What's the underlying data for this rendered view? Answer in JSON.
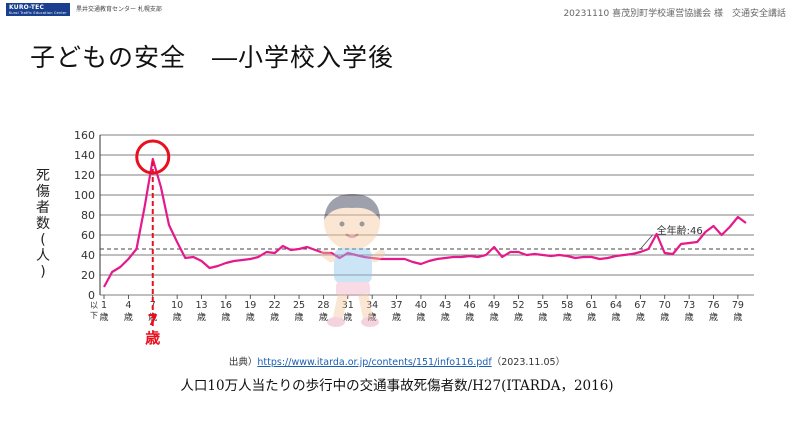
{
  "header": {
    "logo_text": "KURO-TEC",
    "logo_sub": "Kuroi Traffic Education Center",
    "org": "黒井交通教育センター 札幌支部",
    "slide_info": "20231110 喜茂別町学校運営協議会 様　交通安全講話"
  },
  "title": "子どもの安全　―小学校入学後",
  "y_axis_label_chars": [
    "死",
    "傷",
    "者",
    "数",
    "(",
    "人",
    ")"
  ],
  "annotation": {
    "peak_age": "7",
    "peak_unit": "歳",
    "avg_label": "全年齢:46"
  },
  "source": {
    "prefix": "出典）",
    "url": "https://www.itarda.or.jp/contents/151/info116.pdf",
    "date": "（2023.11.05）"
  },
  "caption": "人口10万人当たりの歩行中の交通事故死傷者数/H27(ITARDA，2016)",
  "colors": {
    "line": "#e6198a",
    "highlight": "#e8101e",
    "grid": "#555555",
    "avg_line": "#444444",
    "logo": "#1b3f8f"
  },
  "chart_data": {
    "type": "line",
    "title": "",
    "ylabel": "死傷者数(人)",
    "xlabel": "",
    "ylim": [
      0,
      160
    ],
    "yticks": [
      0,
      20,
      40,
      60,
      80,
      100,
      120,
      140,
      160
    ],
    "grid": true,
    "x_tick_labels": [
      {
        "age": 1,
        "text": "1",
        "suffix": "歳",
        "prefix": "以下"
      },
      {
        "age": 4,
        "text": "4",
        "suffix": "歳"
      },
      {
        "age": 7,
        "text": "7",
        "suffix": "歳"
      },
      {
        "age": 10,
        "text": "10",
        "suffix": "歳"
      },
      {
        "age": 13,
        "text": "13",
        "suffix": "歳"
      },
      {
        "age": 16,
        "text": "16",
        "suffix": "歳"
      },
      {
        "age": 19,
        "text": "19",
        "suffix": "歳"
      },
      {
        "age": 22,
        "text": "22",
        "suffix": "歳"
      },
      {
        "age": 25,
        "text": "25",
        "suffix": "歳"
      },
      {
        "age": 28,
        "text": "28",
        "suffix": "歳"
      },
      {
        "age": 31,
        "text": "31",
        "suffix": "歳"
      },
      {
        "age": 34,
        "text": "34",
        "suffix": "歳"
      },
      {
        "age": 37,
        "text": "37",
        "suffix": "歳"
      },
      {
        "age": 40,
        "text": "40",
        "suffix": "歳"
      },
      {
        "age": 43,
        "text": "43",
        "suffix": "歳"
      },
      {
        "age": 46,
        "text": "46",
        "suffix": "歳"
      },
      {
        "age": 49,
        "text": "49",
        "suffix": "歳"
      },
      {
        "age": 52,
        "text": "52",
        "suffix": "歳"
      },
      {
        "age": 55,
        "text": "55",
        "suffix": "歳"
      },
      {
        "age": 58,
        "text": "58",
        "suffix": "歳"
      },
      {
        "age": 61,
        "text": "61",
        "suffix": "歳"
      },
      {
        "age": 64,
        "text": "64",
        "suffix": "歳"
      },
      {
        "age": 67,
        "text": "67",
        "suffix": "歳"
      },
      {
        "age": 70,
        "text": "70",
        "suffix": "歳"
      },
      {
        "age": 73,
        "text": "73",
        "suffix": "歳"
      },
      {
        "age": 76,
        "text": "76",
        "suffix": "歳"
      },
      {
        "age": 79,
        "text": "79",
        "suffix": "歳"
      }
    ],
    "reference_line": {
      "value": 46,
      "label": "全年齢:46",
      "style": "dashed"
    },
    "highlight": {
      "age": 7,
      "value": 136
    },
    "series": [
      {
        "x": [
          1,
          2,
          3,
          4,
          5,
          6,
          7,
          8,
          9,
          10,
          11,
          12,
          13,
          14,
          15,
          16,
          17,
          18,
          19,
          20,
          21,
          22,
          23,
          24,
          25,
          26,
          27,
          28,
          29,
          30,
          31,
          32,
          33,
          34,
          35,
          36,
          37,
          38,
          39,
          40,
          41,
          42,
          43,
          44,
          45,
          46,
          47,
          48,
          49,
          50,
          51,
          52,
          53,
          54,
          55,
          56,
          57,
          58,
          59,
          60,
          61,
          62,
          63,
          64,
          65,
          66,
          67,
          68,
          69,
          70,
          71,
          72,
          73,
          74,
          75,
          76,
          77,
          78,
          79,
          80
        ],
        "values": [
          8,
          23,
          28,
          36,
          46,
          88,
          136,
          108,
          70,
          53,
          37,
          38,
          34,
          27,
          29,
          32,
          34,
          35,
          36,
          38,
          43,
          42,
          49,
          45,
          46,
          48,
          45,
          42,
          42,
          37,
          42,
          40,
          38,
          37,
          36,
          36,
          36,
          36,
          33,
          31,
          34,
          36,
          37,
          38,
          38,
          39,
          38,
          40,
          48,
          38,
          43,
          43,
          40,
          41,
          40,
          39,
          40,
          39,
          37,
          38,
          38,
          36,
          37,
          39,
          40,
          41,
          43,
          46,
          61,
          42,
          41,
          51,
          52,
          53,
          63,
          69,
          60,
          68,
          78,
          72
        ]
      }
    ]
  }
}
